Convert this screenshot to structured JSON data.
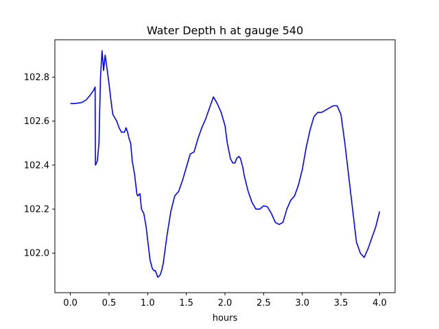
{
  "chart_data": {
    "type": "line",
    "title": "Water Depth h at gauge 540",
    "xlabel": "hours",
    "ylabel": "",
    "xlim": [
      -0.2,
      4.2
    ],
    "ylim": [
      101.82,
      102.97
    ],
    "xticks": [
      0.0,
      0.5,
      1.0,
      1.5,
      2.0,
      2.5,
      3.0,
      3.5,
      4.0
    ],
    "xtick_labels": [
      "0.0",
      "0.5",
      "1.0",
      "1.5",
      "2.0",
      "2.5",
      "3.0",
      "3.5",
      "4.0"
    ],
    "yticks": [
      102.0,
      102.2,
      102.4,
      102.6,
      102.8
    ],
    "ytick_labels": [
      "102.0",
      "102.2",
      "102.4",
      "102.6",
      "102.8"
    ],
    "grid": false,
    "line_color": "#0000ff",
    "series": [
      {
        "x": [
          0.0,
          0.05,
          0.1,
          0.15,
          0.2,
          0.25,
          0.3,
          0.32,
          0.325,
          0.35,
          0.37,
          0.39,
          0.41,
          0.43,
          0.45,
          0.47,
          0.5,
          0.53,
          0.55,
          0.6,
          0.63,
          0.66,
          0.7,
          0.72,
          0.74,
          0.76,
          0.78,
          0.8,
          0.83,
          0.86,
          0.87,
          0.9,
          0.92,
          0.95,
          0.98,
          1.0,
          1.03,
          1.06,
          1.08,
          1.1,
          1.13,
          1.16,
          1.18,
          1.2,
          1.25,
          1.3,
          1.35,
          1.4,
          1.45,
          1.5,
          1.55,
          1.6,
          1.65,
          1.7,
          1.75,
          1.8,
          1.85,
          1.9,
          1.95,
          2.0,
          2.03,
          2.07,
          2.1,
          2.13,
          2.15,
          2.18,
          2.2,
          2.23,
          2.25,
          2.3,
          2.35,
          2.4,
          2.45,
          2.5,
          2.55,
          2.6,
          2.65,
          2.7,
          2.75,
          2.8,
          2.85,
          2.9,
          2.95,
          3.0,
          3.05,
          3.1,
          3.15,
          3.2,
          3.25,
          3.3,
          3.35,
          3.4,
          3.45,
          3.5,
          3.55,
          3.6,
          3.65,
          3.7,
          3.75,
          3.8,
          3.85,
          3.9,
          3.95,
          4.0
        ],
        "y": [
          102.68,
          102.68,
          102.682,
          102.685,
          102.695,
          102.715,
          102.74,
          102.755,
          102.4,
          102.42,
          102.5,
          102.8,
          102.92,
          102.83,
          102.9,
          102.85,
          102.77,
          102.68,
          102.63,
          102.6,
          102.57,
          102.55,
          102.55,
          102.57,
          102.55,
          102.52,
          102.5,
          102.42,
          102.36,
          102.27,
          102.26,
          102.27,
          102.2,
          102.18,
          102.12,
          102.06,
          101.97,
          101.93,
          101.92,
          101.92,
          101.89,
          101.9,
          101.92,
          101.95,
          102.08,
          102.19,
          102.26,
          102.28,
          102.33,
          102.39,
          102.45,
          102.46,
          102.52,
          102.57,
          102.61,
          102.66,
          102.71,
          102.68,
          102.64,
          102.58,
          102.5,
          102.43,
          102.41,
          102.41,
          102.43,
          102.44,
          102.43,
          102.39,
          102.35,
          102.28,
          102.23,
          102.2,
          102.2,
          102.215,
          102.21,
          102.18,
          102.14,
          102.13,
          102.14,
          102.2,
          102.24,
          102.26,
          102.31,
          102.38,
          102.48,
          102.56,
          102.62,
          102.64,
          102.64,
          102.65,
          102.66,
          102.67,
          102.67,
          102.63,
          102.5,
          102.35,
          102.2,
          102.05,
          102.0,
          101.98,
          102.02,
          102.07,
          102.12,
          102.19
        ]
      }
    ]
  }
}
